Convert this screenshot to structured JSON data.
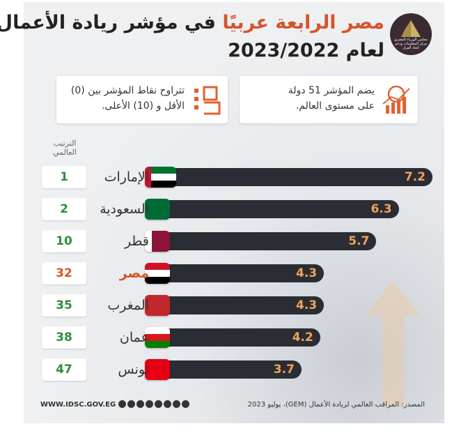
{
  "header": {
    "title_accent": "مصر الرابعة عربيًا",
    "title_rest": " في مؤشر ريادة الأعمال",
    "title_year": "لعام 2023/2022",
    "logo_text": "مجلس الوزراء المصري مركز المعلومات ودعم اتخاذ القرار"
  },
  "info": {
    "right_text": "يضم المؤشر 51 دولة على مستوى العالم.",
    "left_text": "تتراوح نقاط المؤشر بين (0) الأقل و (10) الأعلى."
  },
  "rank_header": "الترتيب العالمي",
  "chart_data": {
    "type": "bar",
    "orientation": "horizontal",
    "title": "مصر الرابعة عربيًا في مؤشر ريادة الأعمال لعام 2023/2022",
    "categories": [
      "الإمارات",
      "السعودية",
      "قطر",
      "مصر",
      "المغرب",
      "عمان",
      "تونس"
    ],
    "values": [
      7.2,
      6.3,
      5.7,
      4.3,
      4.3,
      4.2,
      3.7
    ],
    "value_labels": [
      "7.2",
      "6.3",
      "5.7",
      "4.3",
      "4.3",
      "4.2",
      "3.7"
    ],
    "ranks": [
      "1",
      "2",
      "10",
      "32",
      "35",
      "38",
      "47"
    ],
    "xlim": [
      0,
      10
    ],
    "highlight_category": "مصر",
    "colors": {
      "bar": "#2a2d33",
      "value": "#f2a25c",
      "rank": "#2f8d3c",
      "highlight": "#d5552b"
    }
  },
  "footer": {
    "url": "WWW.IDSC.GOV.EG",
    "source": "المصدر: المراقب العالمي لريادة الأعمال (GEM)، يوليو 2023"
  }
}
